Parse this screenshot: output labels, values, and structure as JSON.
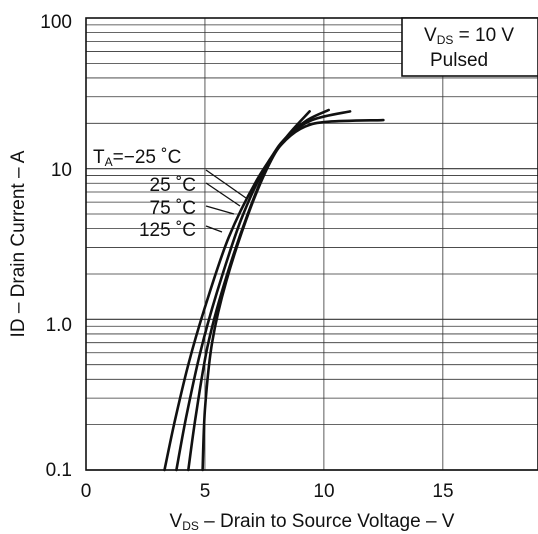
{
  "chart_data": {
    "type": "line",
    "xlabel": "V DS – Drain to Source Voltage – V",
    "xlabel_main": "V",
    "xlabel_sub": "DS",
    "xlabel_rest": " – Drain to Source Voltage – V",
    "ylabel": "ID – Drain Current – A",
    "xlim": [
      0,
      19
    ],
    "ylim": [
      0.1,
      100
    ],
    "y_scale": "log",
    "grid": true,
    "x_ticks": [
      "0",
      "5",
      "10",
      "15"
    ],
    "y_ticks": [
      "0.1",
      "1.0",
      "10",
      "100"
    ],
    "condition_box": {
      "line1_main": "V",
      "line1_sub": "DS",
      "line1_rest": " = 10 V",
      "line2": "Pulsed"
    },
    "legend_prefix_main": "T",
    "legend_prefix_sub": "A",
    "legend_prefix_rest": "=",
    "series": [
      {
        "name": "−25 °C",
        "label": "−25 ˚C",
        "points": [
          [
            3.3,
            0.1
          ],
          [
            3.7,
            0.2
          ],
          [
            4.3,
            0.5
          ],
          [
            5.0,
            1.2
          ],
          [
            6.0,
            3.5
          ],
          [
            7.2,
            8.5
          ],
          [
            8.4,
            16
          ],
          [
            9.4,
            24
          ]
        ]
      },
      {
        "name": "25 °C",
        "label": "25 ˚C",
        "points": [
          [
            3.8,
            0.1
          ],
          [
            4.2,
            0.22
          ],
          [
            4.8,
            0.6
          ],
          [
            5.5,
            1.5
          ],
          [
            6.5,
            4.5
          ],
          [
            7.5,
            10
          ],
          [
            8.4,
            16
          ],
          [
            9.3,
            21
          ],
          [
            10.2,
            24.5
          ]
        ]
      },
      {
        "name": "75 °C",
        "label": "75 ˚C",
        "points": [
          [
            4.3,
            0.1
          ],
          [
            4.6,
            0.22
          ],
          [
            5.1,
            0.65
          ],
          [
            5.8,
            1.7
          ],
          [
            6.8,
            5
          ],
          [
            7.7,
            11
          ],
          [
            8.4,
            16
          ],
          [
            9.5,
            21
          ],
          [
            11.1,
            24
          ]
        ]
      },
      {
        "name": "125 °C",
        "label": "125 ˚C",
        "points": [
          [
            4.9,
            0.1
          ],
          [
            5.0,
            0.25
          ],
          [
            5.3,
            0.7
          ],
          [
            5.9,
            1.8
          ],
          [
            6.9,
            5.4
          ],
          [
            7.8,
            11.5
          ],
          [
            8.4,
            15.5
          ],
          [
            9.2,
            19
          ],
          [
            10.2,
            20.5
          ],
          [
            12.5,
            21
          ]
        ]
      }
    ]
  }
}
